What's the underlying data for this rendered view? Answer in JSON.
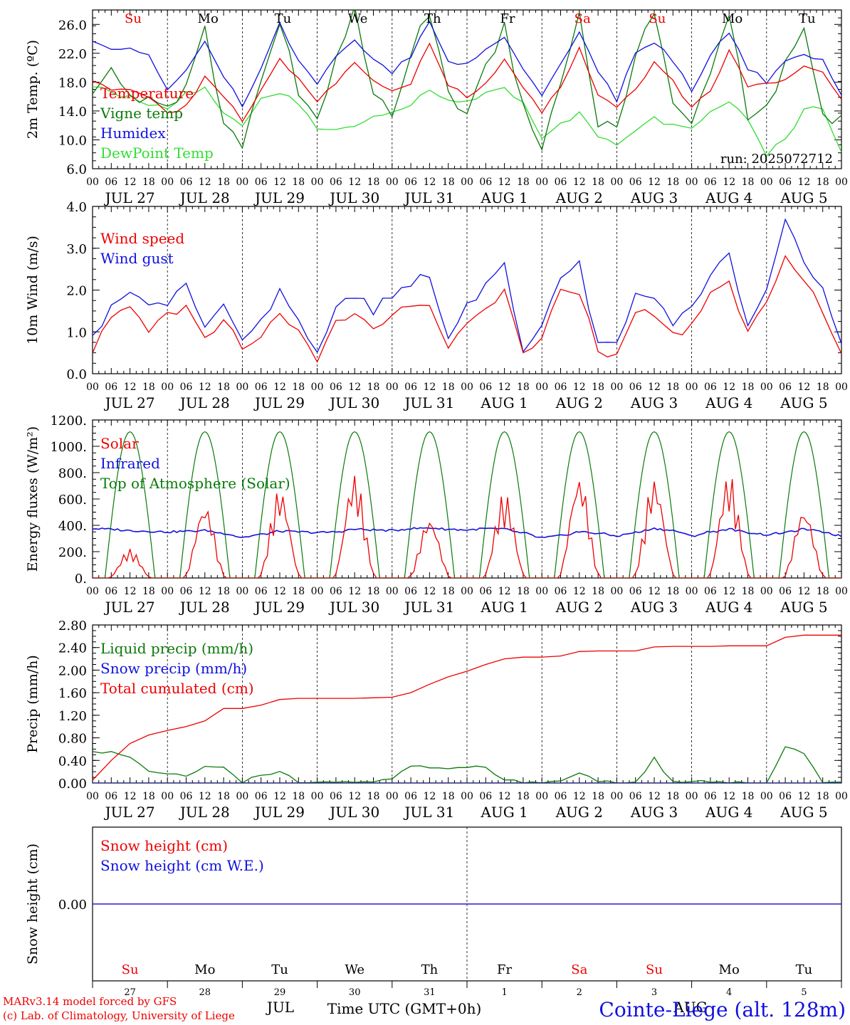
{
  "colors": {
    "red": "#ee0000",
    "green": "#0a7a0a",
    "blue": "#1010e0",
    "lightgreen": "#33dd33"
  },
  "hours": [
    "00",
    "06",
    "12",
    "18"
  ],
  "date_labels": [
    "JUL 27",
    "JUL 28",
    "JUL 29",
    "JUL 30",
    "JUL 31",
    "AUG 1",
    "AUG 2",
    "AUG 3",
    "AUG 4",
    "AUG 5"
  ],
  "weekdays": [
    "Su",
    "Mo",
    "Tu",
    "We",
    "Th",
    "Fr",
    "Sa",
    "Su",
    "Mo",
    "Tu"
  ],
  "weekday_colors": [
    "#ee0000",
    "#000000",
    "#000000",
    "#000000",
    "#000000",
    "#000000",
    "#ee0000",
    "#ee0000",
    "#000000",
    "#000000"
  ],
  "footer": {
    "day_numbers": [
      "27",
      "28",
      "29",
      "30",
      "31",
      "1",
      "2",
      "3",
      "4",
      "5"
    ],
    "month_jul": "JUL",
    "month_aug": "AUG",
    "time_label": "Time UTC (GMT+0h)",
    "credit_1": "MARv3.14 model forced by GFS",
    "credit_2": "(c) Lab. of Climatology, University of Liege",
    "station": "Cointe-Liege (alt. 128m)"
  },
  "chart_data": [
    {
      "id": "temp",
      "type": "line",
      "ylabel": "2m Temp. (ºC)",
      "ylim": [
        6,
        28
      ],
      "yticks": [
        "6.0",
        "10.0",
        "14.0",
        "18.0",
        "22.0",
        "26.0"
      ],
      "run_label": "run: 2025072712",
      "x": "hours since Jul 27 00 UTC (10 days)",
      "series": [
        {
          "name": "Temperature",
          "color": "#ee0000",
          "x": [
            0,
            6,
            12,
            18,
            24,
            30,
            36,
            42,
            48,
            54,
            60,
            66,
            72,
            78,
            84,
            90,
            96,
            102,
            108,
            114,
            120,
            126,
            132,
            138,
            144,
            150,
            156,
            162,
            168,
            174,
            180,
            186,
            192,
            198,
            204,
            210,
            216,
            222,
            228,
            234,
            240
          ],
          "values": [
            18.5,
            16.8,
            17.2,
            15.8,
            14.0,
            14.5,
            18.5,
            16.0,
            12.8,
            17.0,
            21.5,
            18.5,
            15.5,
            18.0,
            21.0,
            18.0,
            16.5,
            18.0,
            23.2,
            17.5,
            16.0,
            18.0,
            21.0,
            17.0,
            14.0,
            17.0,
            22.5,
            16.5,
            14.5,
            17.0,
            20.5,
            18.0,
            14.5,
            17.0,
            22.2,
            17.5,
            17.5,
            18.5,
            20.0,
            19.5,
            15.5
          ]
        },
        {
          "name": "Vigne temp",
          "color": "#0a7a0a",
          "x": [
            0,
            6,
            12,
            18,
            24,
            30,
            36,
            42,
            48,
            54,
            60,
            66,
            72,
            78,
            84,
            90,
            96,
            102,
            108,
            114,
            120,
            126,
            132,
            138,
            144,
            150,
            156,
            162,
            168,
            174,
            180,
            186,
            192,
            198,
            204,
            210,
            216,
            222,
            228,
            234,
            240
          ],
          "values": [
            17.0,
            19.5,
            16.0,
            15.0,
            13.8,
            18.0,
            25.5,
            12.0,
            9.0,
            19.0,
            26.0,
            17.0,
            13.0,
            20.5,
            28.0,
            17.0,
            13.5,
            22.0,
            28.0,
            16.5,
            14.0,
            20.0,
            25.5,
            15.0,
            9.5,
            18.0,
            28.0,
            12.5,
            12.5,
            21.0,
            28.0,
            14.5,
            12.0,
            19.0,
            28.0,
            13.5,
            15.0,
            20.0,
            25.5,
            13.0,
            12.5
          ]
        },
        {
          "name": "Humidex",
          "color": "#1010e0",
          "x": [
            0,
            6,
            12,
            18,
            24,
            30,
            36,
            42,
            48,
            54,
            60,
            66,
            72,
            78,
            84,
            90,
            96,
            102,
            108,
            114,
            120,
            126,
            132,
            138,
            144,
            150,
            156,
            162,
            168,
            174,
            180,
            186,
            192,
            198,
            204,
            210,
            216,
            222,
            228,
            234,
            240
          ],
          "values": [
            24.0,
            22.5,
            22.5,
            21.5,
            17.0,
            20.0,
            23.5,
            19.0,
            14.5,
            20.0,
            26.0,
            21.0,
            17.5,
            21.5,
            23.5,
            21.0,
            19.5,
            21.5,
            26.5,
            21.0,
            20.5,
            22.5,
            24.5,
            20.0,
            16.0,
            20.5,
            25.0,
            19.5,
            15.5,
            22.0,
            23.5,
            21.0,
            17.0,
            21.5,
            25.0,
            20.0,
            18.0,
            21.0,
            21.8,
            21.0,
            16.0
          ]
        },
        {
          "name": "DewPoint Temp",
          "color": "#33dd33",
          "x": [
            0,
            6,
            12,
            18,
            24,
            30,
            36,
            42,
            48,
            54,
            60,
            66,
            72,
            78,
            84,
            90,
            96,
            102,
            108,
            114,
            120,
            126,
            132,
            138,
            144,
            150,
            156,
            162,
            168,
            174,
            180,
            186,
            192,
            198,
            204,
            210,
            216,
            222,
            228,
            234,
            240
          ],
          "values": [
            17.5,
            16.5,
            16.0,
            15.0,
            14.5,
            16.5,
            17.0,
            14.0,
            12.0,
            15.5,
            16.5,
            15.0,
            11.5,
            11.5,
            12.0,
            13.0,
            13.5,
            15.0,
            17.0,
            15.5,
            15.5,
            16.5,
            17.0,
            15.0,
            10.0,
            12.0,
            14.0,
            10.5,
            9.5,
            11.0,
            13.0,
            12.0,
            11.5,
            14.0,
            15.0,
            13.0,
            8.0,
            10.0,
            14.0,
            14.5,
            8.5
          ]
        }
      ]
    },
    {
      "id": "wind",
      "type": "line",
      "ylabel": "10m Wind (m/s)",
      "ylim": [
        0,
        4
      ],
      "yticks": [
        "0.0",
        "1.0",
        "2.0",
        "3.0",
        "4.0"
      ],
      "series": [
        {
          "name": "Wind speed",
          "color": "#ee0000",
          "x": [
            0,
            6,
            12,
            18,
            24,
            30,
            36,
            42,
            48,
            54,
            60,
            66,
            72,
            78,
            84,
            90,
            96,
            102,
            108,
            114,
            120,
            126,
            132,
            138,
            144,
            150,
            156,
            162,
            168,
            174,
            180,
            186,
            192,
            198,
            204,
            210,
            216,
            222,
            228,
            234,
            240
          ],
          "values": [
            0.6,
            1.3,
            1.5,
            1.1,
            1.4,
            1.6,
            0.8,
            1.3,
            0.6,
            0.9,
            1.5,
            1.0,
            0.4,
            1.2,
            1.5,
            1.1,
            1.4,
            1.6,
            1.7,
            0.7,
            1.3,
            1.5,
            2.0,
            0.5,
            0.9,
            1.9,
            2.0,
            0.5,
            0.5,
            1.5,
            1.4,
            0.9,
            1.2,
            2.0,
            2.1,
            0.9,
            1.7,
            2.8,
            2.2,
            1.5,
            0.5
          ]
        },
        {
          "name": "Wind gust",
          "color": "#1010e0",
          "x": [
            0,
            6,
            12,
            18,
            24,
            30,
            36,
            42,
            48,
            54,
            60,
            66,
            72,
            78,
            84,
            90,
            96,
            102,
            108,
            114,
            120,
            126,
            132,
            138,
            144,
            150,
            156,
            162,
            168,
            174,
            180,
            186,
            192,
            198,
            204,
            210,
            216,
            222,
            228,
            234,
            240
          ],
          "values": [
            0.8,
            1.7,
            1.9,
            1.6,
            1.6,
            2.2,
            1.0,
            1.6,
            0.7,
            1.2,
            2.0,
            1.3,
            0.5,
            1.6,
            1.9,
            1.5,
            1.9,
            2.2,
            2.4,
            0.9,
            1.6,
            2.1,
            2.6,
            0.6,
            1.1,
            2.4,
            2.6,
            0.7,
            0.7,
            1.9,
            1.9,
            1.2,
            1.5,
            2.4,
            2.8,
            1.1,
            2.0,
            3.6,
            2.7,
            2.0,
            0.7
          ]
        }
      ]
    },
    {
      "id": "energy",
      "type": "line",
      "ylabel": "Energy fluxes (W/m²)",
      "ylim": [
        0,
        1200
      ],
      "yticks": [
        "0.",
        "200.",
        "400.",
        "600.",
        "800.",
        "1000.",
        "1200."
      ],
      "series": [
        {
          "name": "Solar",
          "color": "#ee0000",
          "daily_peaks": [
            220,
            560,
            680,
            790,
            460,
            650,
            780,
            760,
            790,
            530
          ],
          "values": [
            0,
            170,
            220,
            0,
            0,
            300,
            560,
            0,
            0,
            420,
            680,
            0,
            0,
            350,
            790,
            0,
            0,
            300,
            460,
            0,
            0,
            650,
            550,
            0,
            0,
            600,
            780,
            0,
            0,
            650,
            760,
            0,
            0,
            500,
            790,
            0,
            0,
            100,
            530,
            0,
            0
          ]
        },
        {
          "name": "Infrared",
          "color": "#1010e0",
          "values": [
            375,
            370,
            360,
            355,
            350,
            355,
            360,
            340,
            310,
            330,
            355,
            350,
            345,
            350,
            370,
            365,
            360,
            375,
            380,
            370,
            365,
            375,
            370,
            340,
            305,
            320,
            350,
            340,
            320,
            345,
            375,
            360,
            320,
            350,
            370,
            345,
            330,
            345,
            370,
            350,
            320
          ]
        },
        {
          "name": "Top of Atmosphere (Solar)",
          "color": "#0a7a0a",
          "peak": 1110
        }
      ]
    },
    {
      "id": "precip",
      "type": "line",
      "ylabel": "Precip (mm/h)",
      "ylim": [
        0,
        2.8
      ],
      "yticks": [
        "0.00",
        "0.40",
        "0.80",
        "1.20",
        "1.60",
        "2.00",
        "2.40",
        "2.80"
      ],
      "series": [
        {
          "name": "Liquid precip (mm/h)",
          "color": "#0a7a0a",
          "x": [
            0,
            6,
            12,
            18,
            24,
            30,
            36,
            42,
            48,
            54,
            60,
            66,
            72,
            78,
            84,
            90,
            96,
            102,
            108,
            114,
            120,
            126,
            132,
            138,
            144,
            150,
            156,
            162,
            168,
            174,
            180,
            186,
            192,
            198,
            204,
            210,
            216,
            222,
            228,
            234,
            240
          ],
          "values": [
            0.55,
            0.55,
            0.45,
            0.18,
            0.17,
            0.1,
            0.28,
            0.3,
            0.02,
            0.15,
            0.2,
            0.02,
            0.0,
            0.0,
            0.01,
            0.02,
            0.05,
            0.3,
            0.25,
            0.25,
            0.3,
            0.25,
            0.08,
            0.02,
            0.0,
            0.02,
            0.2,
            0.02,
            0.0,
            0.0,
            0.43,
            0.0,
            0.0,
            0.04,
            0.0,
            0.0,
            0.0,
            0.65,
            0.55,
            0.0,
            0.0
          ]
        },
        {
          "name": "Snow precip (mm/h)",
          "color": "#1010e0",
          "x": [
            0,
            240
          ],
          "values": [
            0,
            0
          ]
        },
        {
          "name": "Total cumulated (cm)",
          "color": "#ee0000",
          "x": [
            0,
            6,
            12,
            18,
            24,
            30,
            36,
            42,
            48,
            54,
            60,
            66,
            72,
            78,
            84,
            90,
            96,
            102,
            108,
            114,
            120,
            126,
            132,
            138,
            144,
            150,
            156,
            162,
            168,
            174,
            180,
            186,
            192,
            198,
            204,
            210,
            216,
            222,
            228,
            234,
            240
          ],
          "values": [
            0.05,
            0.4,
            0.7,
            0.85,
            0.93,
            1.0,
            1.1,
            1.32,
            1.32,
            1.38,
            1.48,
            1.5,
            1.5,
            1.5,
            1.5,
            1.51,
            1.52,
            1.6,
            1.75,
            1.88,
            1.98,
            2.1,
            2.2,
            2.23,
            2.23,
            2.25,
            2.33,
            2.34,
            2.34,
            2.34,
            2.41,
            2.42,
            2.42,
            2.42,
            2.43,
            2.43,
            2.43,
            2.58,
            2.62,
            2.62,
            2.62
          ]
        }
      ]
    },
    {
      "id": "snow",
      "type": "line",
      "ylabel": "Snow height (cm)",
      "ylim": [
        -1,
        1
      ],
      "yticks": [
        "0.00"
      ],
      "series": [
        {
          "name": "Snow height (cm)",
          "color": "#ee0000",
          "x": [
            0,
            240
          ],
          "values": [
            0,
            0
          ]
        },
        {
          "name": "Snow height (cm W.E.)",
          "color": "#1010e0",
          "x": [
            0,
            240
          ],
          "values": [
            0,
            0
          ]
        }
      ]
    }
  ]
}
